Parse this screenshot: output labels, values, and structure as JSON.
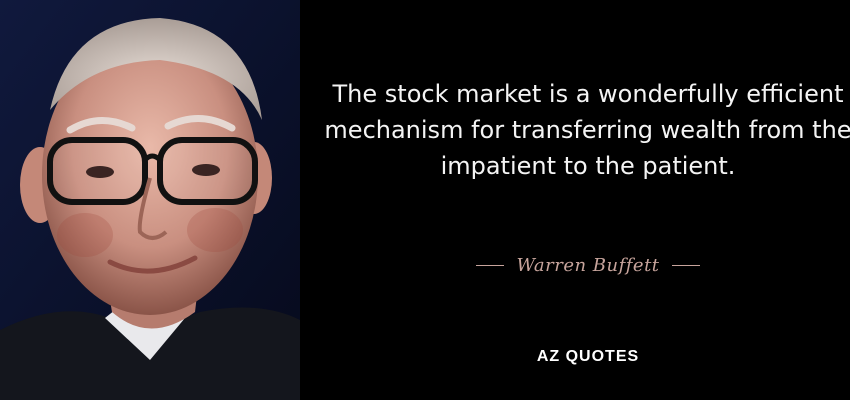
{
  "quote": {
    "text": "The stock market is a wonderfully efficient mechanism for transferring wealth from the impatient to the patient."
  },
  "author": {
    "name": "Warren Buffett"
  },
  "brand": {
    "logo": "AZ QUOTES"
  },
  "colors": {
    "background": "#000000",
    "portrait_backdrop": "#0b1533",
    "quote_text": "#f4f4f4",
    "author_accent": "#c7a49c"
  }
}
